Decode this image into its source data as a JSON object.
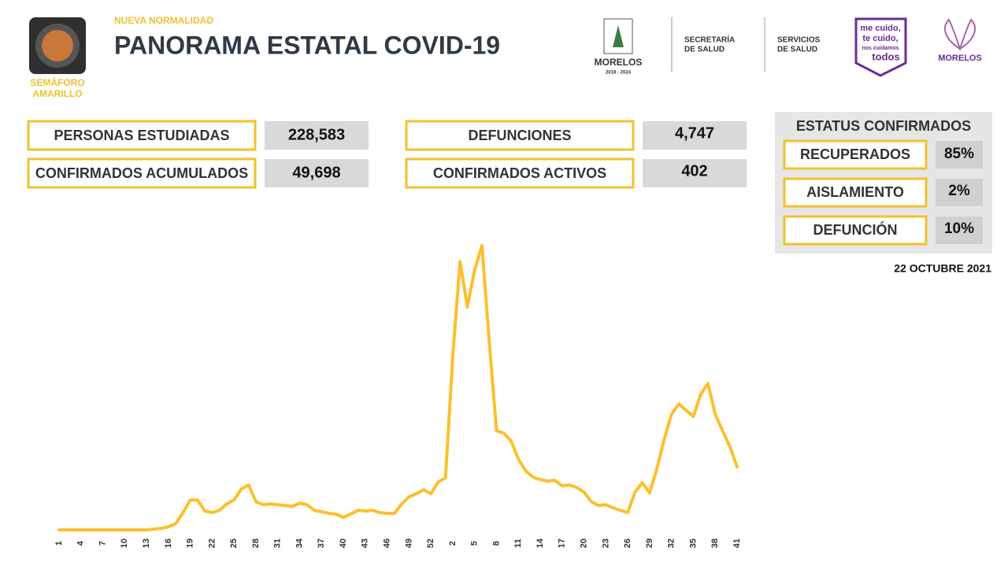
{
  "header": {
    "subtitle": "NUEVA NORMALIDAD",
    "title": "PANORAMA ESTATAL COVID-19",
    "semaforo": [
      "SEMÁFORO",
      "AMARILLO"
    ]
  },
  "logos": {
    "morelos": "MORELOS",
    "morelos_years": "2018 - 2024",
    "secretaria": [
      "SECRETARÍA",
      "DE SALUD"
    ],
    "servicios": [
      "SERVICIOS",
      "DE SALUD"
    ],
    "campaign": [
      "me cuido,",
      "te cuido,",
      "nos cuidamos",
      "todos"
    ],
    "gobierno": "MORELOS"
  },
  "stats": [
    {
      "label": "PERSONAS ESTUDIADAS",
      "value": "228,583"
    },
    {
      "label": "CONFIRMADOS ACUMULADOS",
      "value": "49,698"
    },
    {
      "label": "DEFUNCIONES",
      "value": "4,747"
    },
    {
      "label": "CONFIRMADOS ACTIVOS",
      "value": "402"
    }
  ],
  "status": {
    "title": "ESTATUS CONFIRMADOS",
    "items": [
      {
        "label": "RECUPERADOS",
        "value": "85%"
      },
      {
        "label": "AISLAMIENTO",
        "value": "2%"
      },
      {
        "label": "DEFUNCIÓN",
        "value": "10%"
      }
    ]
  },
  "date": "22 OCTUBRE 2021",
  "chart_data": {
    "type": "line",
    "color": "#fbc02d",
    "ylim": [
      0,
      380
    ],
    "categories": [
      "1",
      null,
      null,
      "4",
      null,
      null,
      "7",
      null,
      null,
      "10",
      null,
      null,
      "13",
      null,
      null,
      "16",
      null,
      null,
      "19",
      null,
      null,
      "22",
      null,
      null,
      "25",
      null,
      null,
      "28",
      null,
      null,
      "31",
      null,
      null,
      "34",
      null,
      null,
      "37",
      null,
      null,
      "40",
      null,
      null,
      "43",
      null,
      null,
      "46",
      null,
      null,
      "49",
      null,
      null,
      "52",
      null,
      null,
      "2",
      null,
      null,
      "5",
      null,
      null,
      "8",
      null,
      null,
      "11",
      null,
      null,
      "14",
      null,
      null,
      "17",
      null,
      null,
      "20",
      null,
      null,
      "23",
      null,
      null,
      "26",
      null,
      null,
      "29",
      null,
      null,
      "32",
      null,
      null,
      "35",
      null,
      null,
      "38",
      null,
      null,
      "41"
    ],
    "values": [
      0,
      0,
      0,
      0,
      0,
      0,
      0,
      0,
      0,
      0,
      0,
      0,
      0,
      1,
      2,
      4,
      8,
      22,
      38,
      38,
      24,
      22,
      25,
      33,
      38,
      52,
      57,
      36,
      32,
      33,
      32,
      31,
      30,
      34,
      32,
      25,
      23,
      21,
      20,
      16,
      20,
      25,
      24,
      25,
      22,
      21,
      21,
      33,
      42,
      46,
      51,
      46,
      61,
      66,
      220,
      341,
      283,
      330,
      361,
      240,
      126,
      123,
      113,
      90,
      75,
      67,
      64,
      62,
      63,
      56,
      57,
      54,
      48,
      36,
      31,
      32,
      28,
      25,
      22,
      48,
      60,
      47,
      78,
      115,
      147,
      160,
      152,
      144,
      172,
      186,
      147,
      126,
      106,
      80
    ]
  }
}
